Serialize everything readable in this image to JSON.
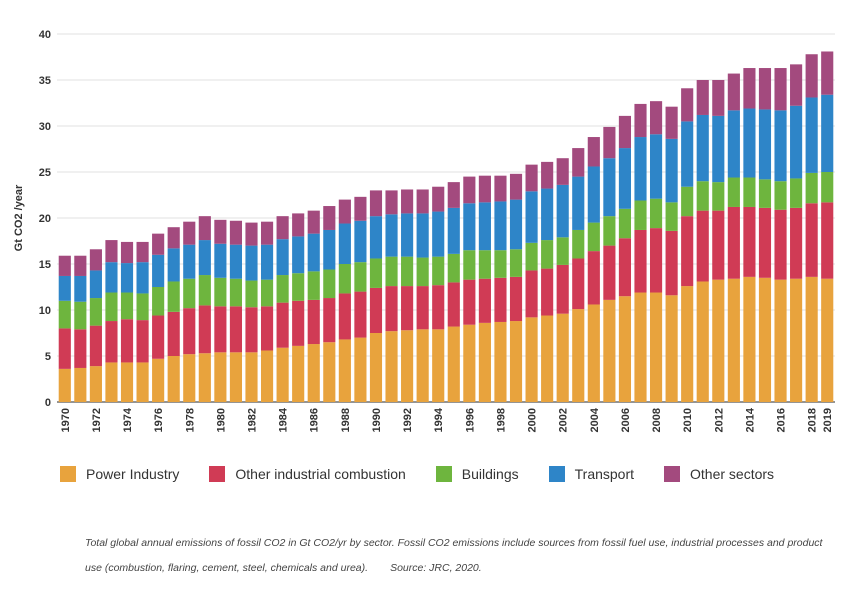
{
  "chart_data": {
    "type": "stacked-bar",
    "ylabel": "Gt CO2 /year",
    "ylim": [
      0,
      40
    ],
    "yticks": [
      0,
      5,
      10,
      15,
      20,
      25,
      30,
      35,
      40
    ],
    "categories": [
      "1970",
      "1971",
      "1972",
      "1973",
      "1974",
      "1975",
      "1976",
      "1977",
      "1978",
      "1979",
      "1980",
      "1981",
      "1982",
      "1983",
      "1984",
      "1985",
      "1986",
      "1987",
      "1988",
      "1989",
      "1990",
      "1991",
      "1992",
      "1993",
      "1994",
      "1995",
      "1996",
      "1997",
      "1998",
      "1999",
      "2000",
      "2001",
      "2002",
      "2003",
      "2004",
      "2005",
      "2006",
      "2007",
      "2008",
      "2009",
      "2010",
      "2011",
      "2012",
      "2013",
      "2014",
      "2015",
      "2016",
      "2017",
      "2018",
      "2019"
    ],
    "xtick_labels": [
      "1970",
      "1972",
      "1974",
      "1976",
      "1978",
      "1980",
      "1982",
      "1984",
      "1986",
      "1988",
      "1990",
      "1992",
      "1994",
      "1996",
      "1998",
      "2000",
      "2002",
      "2004",
      "2006",
      "2008",
      "2010",
      "2012",
      "2014",
      "2016",
      "2018",
      "2019"
    ],
    "series": [
      {
        "name": "Power Industry",
        "color": "#E8A33D",
        "values": [
          3.6,
          3.7,
          3.9,
          4.3,
          4.3,
          4.3,
          4.7,
          5.0,
          5.2,
          5.3,
          5.4,
          5.4,
          5.4,
          5.6,
          5.9,
          6.1,
          6.3,
          6.5,
          6.8,
          7.0,
          7.5,
          7.7,
          7.8,
          7.9,
          7.9,
          8.2,
          8.4,
          8.6,
          8.7,
          8.8,
          9.2,
          9.4,
          9.6,
          10.1,
          10.6,
          11.1,
          11.5,
          11.9,
          11.9,
          11.6,
          12.6,
          13.1,
          13.3,
          13.4,
          13.6,
          13.5,
          13.3,
          13.4,
          13.6,
          13.4
        ]
      },
      {
        "name": "Other industrial combustion",
        "color": "#D03B55",
        "values": [
          4.4,
          4.2,
          4.4,
          4.5,
          4.7,
          4.6,
          4.7,
          4.8,
          5.0,
          5.2,
          5.0,
          5.0,
          4.9,
          4.8,
          4.9,
          4.9,
          4.8,
          4.8,
          5.0,
          5.0,
          4.9,
          4.9,
          4.8,
          4.7,
          4.8,
          4.8,
          4.9,
          4.8,
          4.8,
          4.8,
          5.1,
          5.1,
          5.3,
          5.5,
          5.8,
          5.9,
          6.3,
          6.8,
          7.0,
          7.0,
          7.6,
          7.7,
          7.5,
          7.8,
          7.6,
          7.6,
          7.6,
          7.7,
          8.0,
          8.3
        ]
      },
      {
        "name": "Buildings",
        "color": "#6EB53E",
        "values": [
          3.0,
          3.0,
          3.0,
          3.1,
          2.9,
          2.9,
          3.1,
          3.3,
          3.2,
          3.3,
          3.1,
          3.0,
          2.9,
          2.9,
          3.0,
          3.0,
          3.1,
          3.1,
          3.2,
          3.2,
          3.2,
          3.2,
          3.2,
          3.1,
          3.1,
          3.1,
          3.2,
          3.1,
          3.0,
          3.0,
          3.0,
          3.1,
          3.0,
          3.1,
          3.1,
          3.2,
          3.2,
          3.2,
          3.2,
          3.1,
          3.2,
          3.2,
          3.1,
          3.2,
          3.2,
          3.1,
          3.1,
          3.2,
          3.3,
          3.3
        ]
      },
      {
        "name": "Transport",
        "color": "#2E85C8",
        "values": [
          2.7,
          2.8,
          3.0,
          3.3,
          3.2,
          3.4,
          3.5,
          3.6,
          3.7,
          3.8,
          3.7,
          3.7,
          3.8,
          3.8,
          3.9,
          4.0,
          4.1,
          4.3,
          4.4,
          4.5,
          4.6,
          4.6,
          4.7,
          4.8,
          4.9,
          5.0,
          5.1,
          5.2,
          5.3,
          5.4,
          5.6,
          5.6,
          5.7,
          5.8,
          6.1,
          6.3,
          6.6,
          6.9,
          7.0,
          6.9,
          7.1,
          7.2,
          7.2,
          7.3,
          7.5,
          7.6,
          7.7,
          7.9,
          8.2,
          8.4
        ]
      },
      {
        "name": "Other sectors",
        "color": "#A34A7E",
        "values": [
          2.2,
          2.2,
          2.3,
          2.4,
          2.3,
          2.2,
          2.3,
          2.3,
          2.5,
          2.6,
          2.6,
          2.6,
          2.5,
          2.5,
          2.5,
          2.5,
          2.5,
          2.6,
          2.6,
          2.6,
          2.8,
          2.6,
          2.6,
          2.6,
          2.7,
          2.8,
          2.9,
          2.9,
          2.8,
          2.8,
          2.9,
          2.9,
          2.9,
          3.1,
          3.2,
          3.4,
          3.5,
          3.6,
          3.6,
          3.5,
          3.6,
          3.8,
          3.9,
          4.0,
          4.4,
          4.5,
          4.6,
          4.5,
          4.7,
          4.7
        ]
      }
    ]
  },
  "caption": {
    "text": "Total global annual emissions of fossil CO2 in Gt CO2/yr by sector. Fossil CO2 emissions include sources from fossil fuel use, industrial processes and  product use (combustion, flaring, cement, steel, chemicals and urea).",
    "source": "Source: JRC, 2020."
  }
}
